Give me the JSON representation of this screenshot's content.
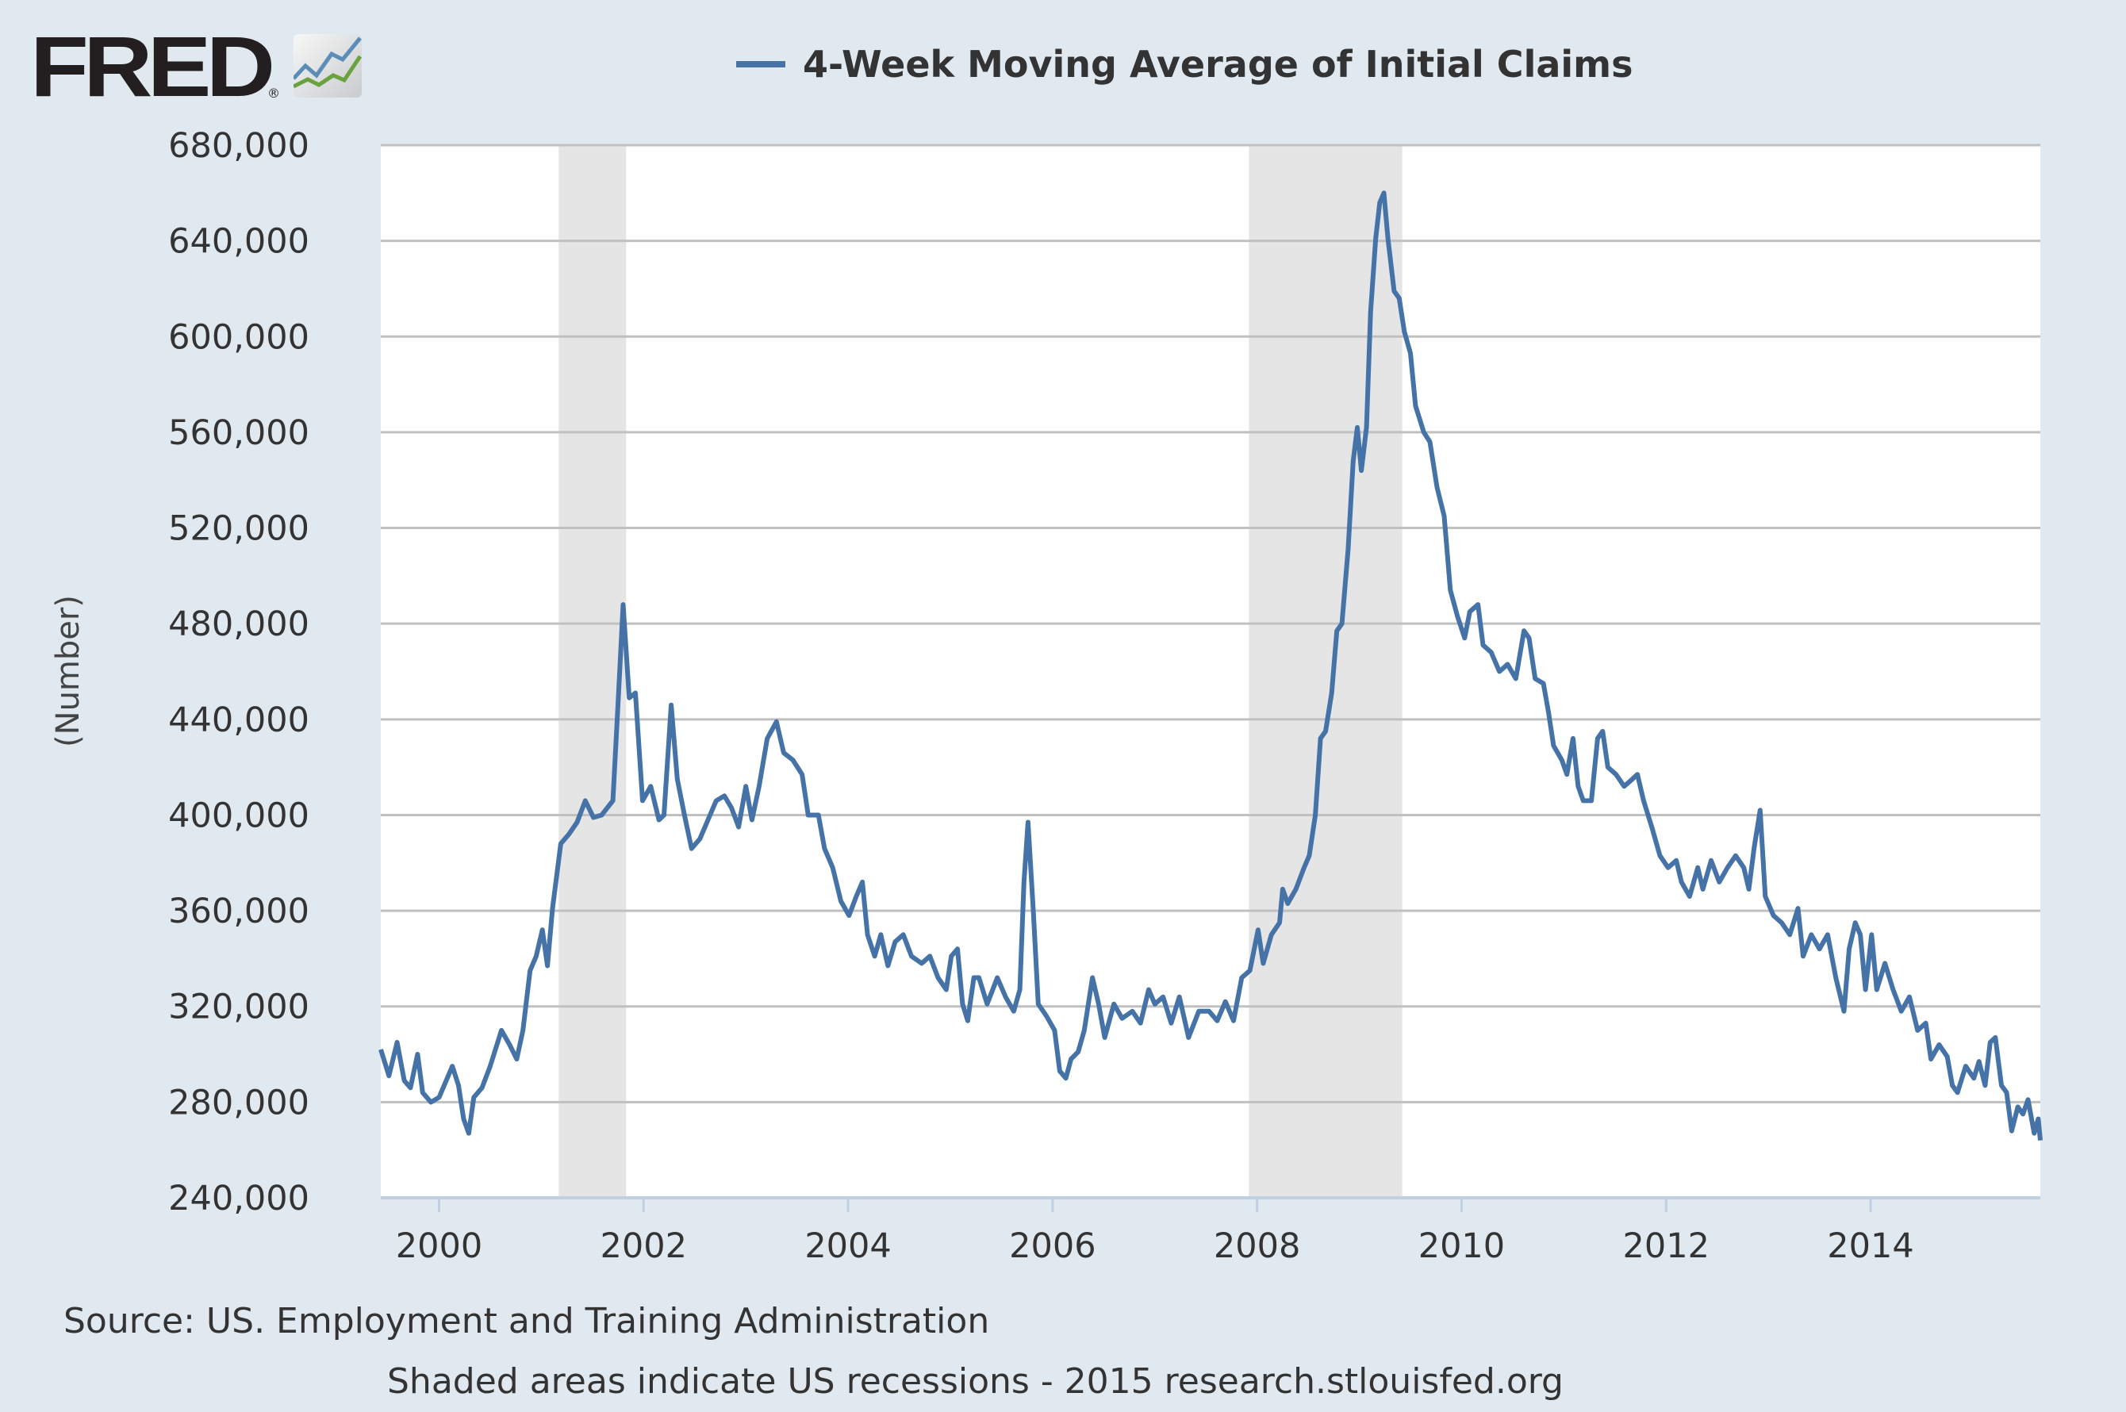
{
  "logo": {
    "text": "FRED",
    "registered": "®"
  },
  "footer": {
    "source": "Source: US. Employment and Training Administration",
    "note": "Shaded areas indicate US recessions - 2015 research.stlouisfed.org"
  },
  "colors": {
    "series": "#4572a7",
    "background": "#e1e9f0",
    "plot_background": "#ffffff",
    "recession": "#e5e5e5",
    "grid": "#c0c0c0"
  },
  "chart_data": {
    "type": "line",
    "title": "",
    "xlabel": "",
    "ylabel": "(Number)",
    "legend_position": "top",
    "grid": true,
    "xlim": [
      1999.43,
      2015.66
    ],
    "ylim": [
      240000,
      680000
    ],
    "x_ticks": [
      "2000",
      "2002",
      "2004",
      "2006",
      "2008",
      "2010",
      "2012",
      "2014"
    ],
    "y_ticks": [
      "240,000",
      "280,000",
      "320,000",
      "360,000",
      "400,000",
      "440,000",
      "480,000",
      "520,000",
      "560,000",
      "600,000",
      "640,000",
      "680,000"
    ],
    "recessions": [
      [
        2001.17,
        2001.83
      ],
      [
        2007.92,
        2009.42
      ]
    ],
    "series": [
      {
        "name": "4-Week Moving Average of Initial Claims",
        "points": [
          [
            1999.43,
            302000
          ],
          [
            1999.51,
            291000
          ],
          [
            1999.59,
            305000
          ],
          [
            1999.66,
            289000
          ],
          [
            1999.72,
            286000
          ],
          [
            1999.79,
            300000
          ],
          [
            1999.84,
            284000
          ],
          [
            1999.92,
            280000
          ],
          [
            2000.0,
            282000
          ],
          [
            2000.08,
            290000
          ],
          [
            2000.13,
            295000
          ],
          [
            2000.19,
            287000
          ],
          [
            2000.24,
            273000
          ],
          [
            2000.29,
            267000
          ],
          [
            2000.34,
            282000
          ],
          [
            2000.42,
            286000
          ],
          [
            2000.5,
            295000
          ],
          [
            2000.61,
            310000
          ],
          [
            2000.69,
            304000
          ],
          [
            2000.76,
            298000
          ],
          [
            2000.82,
            310000
          ],
          [
            2000.89,
            335000
          ],
          [
            2000.95,
            341000
          ],
          [
            2001.01,
            352000
          ],
          [
            2001.06,
            337000
          ],
          [
            2001.11,
            361000
          ],
          [
            2001.19,
            388000
          ],
          [
            2001.27,
            392000
          ],
          [
            2001.35,
            397000
          ],
          [
            2001.43,
            406000
          ],
          [
            2001.51,
            399000
          ],
          [
            2001.59,
            400000
          ],
          [
            2001.7,
            406000
          ],
          [
            2001.75,
            446000
          ],
          [
            2001.8,
            488000
          ],
          [
            2001.86,
            449000
          ],
          [
            2001.92,
            451000
          ],
          [
            2001.99,
            406000
          ],
          [
            2002.07,
            412000
          ],
          [
            2002.15,
            398000
          ],
          [
            2002.2,
            400000
          ],
          [
            2002.27,
            446000
          ],
          [
            2002.33,
            415000
          ],
          [
            2002.4,
            400000
          ],
          [
            2002.47,
            386000
          ],
          [
            2002.55,
            390000
          ],
          [
            2002.63,
            398000
          ],
          [
            2002.71,
            406000
          ],
          [
            2002.79,
            408000
          ],
          [
            2002.86,
            403000
          ],
          [
            2002.93,
            395000
          ],
          [
            2003.0,
            412000
          ],
          [
            2003.06,
            398000
          ],
          [
            2003.13,
            412000
          ],
          [
            2003.21,
            432000
          ],
          [
            2003.3,
            439000
          ],
          [
            2003.37,
            426000
          ],
          [
            2003.46,
            423000
          ],
          [
            2003.55,
            417000
          ],
          [
            2003.61,
            400000
          ],
          [
            2003.71,
            400000
          ],
          [
            2003.77,
            386000
          ],
          [
            2003.85,
            378000
          ],
          [
            2003.93,
            364000
          ],
          [
            2004.01,
            358000
          ],
          [
            2004.08,
            366000
          ],
          [
            2004.14,
            372000
          ],
          [
            2004.19,
            350000
          ],
          [
            2004.26,
            341000
          ],
          [
            2004.32,
            350000
          ],
          [
            2004.39,
            337000
          ],
          [
            2004.46,
            347000
          ],
          [
            2004.54,
            350000
          ],
          [
            2004.62,
            341000
          ],
          [
            2004.72,
            338000
          ],
          [
            2004.8,
            341000
          ],
          [
            2004.88,
            332000
          ],
          [
            2004.96,
            327000
          ],
          [
            2005.01,
            341000
          ],
          [
            2005.07,
            344000
          ],
          [
            2005.12,
            321000
          ],
          [
            2005.17,
            314000
          ],
          [
            2005.23,
            332000
          ],
          [
            2005.28,
            332000
          ],
          [
            2005.36,
            321000
          ],
          [
            2005.46,
            332000
          ],
          [
            2005.54,
            324000
          ],
          [
            2005.62,
            318000
          ],
          [
            2005.68,
            327000
          ],
          [
            2005.72,
            372000
          ],
          [
            2005.76,
            397000
          ],
          [
            2005.81,
            361000
          ],
          [
            2005.86,
            321000
          ],
          [
            2005.94,
            316000
          ],
          [
            2006.02,
            310000
          ],
          [
            2006.07,
            293000
          ],
          [
            2006.13,
            290000
          ],
          [
            2006.18,
            298000
          ],
          [
            2006.25,
            301000
          ],
          [
            2006.31,
            310000
          ],
          [
            2006.39,
            332000
          ],
          [
            2006.45,
            321000
          ],
          [
            2006.51,
            307000
          ],
          [
            2006.6,
            321000
          ],
          [
            2006.68,
            315000
          ],
          [
            2006.78,
            318000
          ],
          [
            2006.86,
            313000
          ],
          [
            2006.94,
            327000
          ],
          [
            2007.0,
            321000
          ],
          [
            2007.08,
            324000
          ],
          [
            2007.16,
            313000
          ],
          [
            2007.24,
            324000
          ],
          [
            2007.33,
            307000
          ],
          [
            2007.43,
            318000
          ],
          [
            2007.53,
            318000
          ],
          [
            2007.61,
            314000
          ],
          [
            2007.69,
            322000
          ],
          [
            2007.77,
            314000
          ],
          [
            2007.85,
            332000
          ],
          [
            2007.93,
            335000
          ],
          [
            2008.01,
            352000
          ],
          [
            2008.06,
            338000
          ],
          [
            2008.14,
            350000
          ],
          [
            2008.22,
            355000
          ],
          [
            2008.25,
            369000
          ],
          [
            2008.3,
            363000
          ],
          [
            2008.38,
            369000
          ],
          [
            2008.46,
            378000
          ],
          [
            2008.51,
            383000
          ],
          [
            2008.57,
            400000
          ],
          [
            2008.62,
            432000
          ],
          [
            2008.67,
            435000
          ],
          [
            2008.73,
            451000
          ],
          [
            2008.78,
            477000
          ],
          [
            2008.83,
            480000
          ],
          [
            2008.89,
            511000
          ],
          [
            2008.94,
            548000
          ],
          [
            2008.98,
            562000
          ],
          [
            2009.02,
            544000
          ],
          [
            2009.07,
            562000
          ],
          [
            2009.11,
            610000
          ],
          [
            2009.16,
            641000
          ],
          [
            2009.2,
            656000
          ],
          [
            2009.24,
            660000
          ],
          [
            2009.28,
            641000
          ],
          [
            2009.34,
            619000
          ],
          [
            2009.39,
            616000
          ],
          [
            2009.44,
            602000
          ],
          [
            2009.5,
            593000
          ],
          [
            2009.55,
            571000
          ],
          [
            2009.63,
            560000
          ],
          [
            2009.69,
            556000
          ],
          [
            2009.76,
            537000
          ],
          [
            2009.83,
            525000
          ],
          [
            2009.89,
            494000
          ],
          [
            2009.96,
            483000
          ],
          [
            2010.03,
            474000
          ],
          [
            2010.08,
            485000
          ],
          [
            2010.16,
            488000
          ],
          [
            2010.21,
            471000
          ],
          [
            2010.29,
            468000
          ],
          [
            2010.37,
            460000
          ],
          [
            2010.45,
            463000
          ],
          [
            2010.53,
            457000
          ],
          [
            2010.61,
            477000
          ],
          [
            2010.66,
            474000
          ],
          [
            2010.72,
            457000
          ],
          [
            2010.8,
            455000
          ],
          [
            2010.85,
            443000
          ],
          [
            2010.9,
            429000
          ],
          [
            2010.98,
            423000
          ],
          [
            2011.03,
            417000
          ],
          [
            2011.09,
            432000
          ],
          [
            2011.14,
            412000
          ],
          [
            2011.19,
            406000
          ],
          [
            2011.27,
            406000
          ],
          [
            2011.33,
            432000
          ],
          [
            2011.38,
            435000
          ],
          [
            2011.43,
            420000
          ],
          [
            2011.51,
            417000
          ],
          [
            2011.59,
            412000
          ],
          [
            2011.67,
            415000
          ],
          [
            2011.72,
            417000
          ],
          [
            2011.78,
            406000
          ],
          [
            2011.86,
            395000
          ],
          [
            2011.94,
            383000
          ],
          [
            2012.02,
            378000
          ],
          [
            2012.1,
            381000
          ],
          [
            2012.15,
            372000
          ],
          [
            2012.23,
            366000
          ],
          [
            2012.31,
            378000
          ],
          [
            2012.36,
            369000
          ],
          [
            2012.44,
            381000
          ],
          [
            2012.52,
            372000
          ],
          [
            2012.6,
            378000
          ],
          [
            2012.68,
            383000
          ],
          [
            2012.76,
            378000
          ],
          [
            2012.81,
            369000
          ],
          [
            2012.86,
            386000
          ],
          [
            2012.92,
            402000
          ],
          [
            2012.97,
            366000
          ],
          [
            2013.05,
            358000
          ],
          [
            2013.13,
            355000
          ],
          [
            2013.21,
            350000
          ],
          [
            2013.29,
            361000
          ],
          [
            2013.34,
            341000
          ],
          [
            2013.42,
            350000
          ],
          [
            2013.5,
            344000
          ],
          [
            2013.58,
            350000
          ],
          [
            2013.66,
            332000
          ],
          [
            2013.74,
            318000
          ],
          [
            2013.79,
            344000
          ],
          [
            2013.85,
            355000
          ],
          [
            2013.9,
            350000
          ],
          [
            2013.95,
            327000
          ],
          [
            2014.01,
            350000
          ],
          [
            2014.06,
            327000
          ],
          [
            2014.14,
            338000
          ],
          [
            2014.22,
            327000
          ],
          [
            2014.3,
            318000
          ],
          [
            2014.38,
            324000
          ],
          [
            2014.46,
            310000
          ],
          [
            2014.54,
            313000
          ],
          [
            2014.59,
            298000
          ],
          [
            2014.67,
            304000
          ],
          [
            2014.75,
            299000
          ],
          [
            2014.8,
            287000
          ],
          [
            2014.85,
            284000
          ],
          [
            2014.93,
            295000
          ],
          [
            2015.01,
            290000
          ],
          [
            2015.06,
            297000
          ],
          [
            2015.12,
            287000
          ],
          [
            2015.17,
            305000
          ],
          [
            2015.22,
            307000
          ],
          [
            2015.28,
            287000
          ],
          [
            2015.33,
            284000
          ],
          [
            2015.38,
            268000
          ],
          [
            2015.44,
            278000
          ],
          [
            2015.49,
            275000
          ],
          [
            2015.54,
            281000
          ],
          [
            2015.6,
            267000
          ],
          [
            2015.64,
            273000
          ],
          [
            2015.66,
            264000
          ]
        ]
      }
    ]
  }
}
